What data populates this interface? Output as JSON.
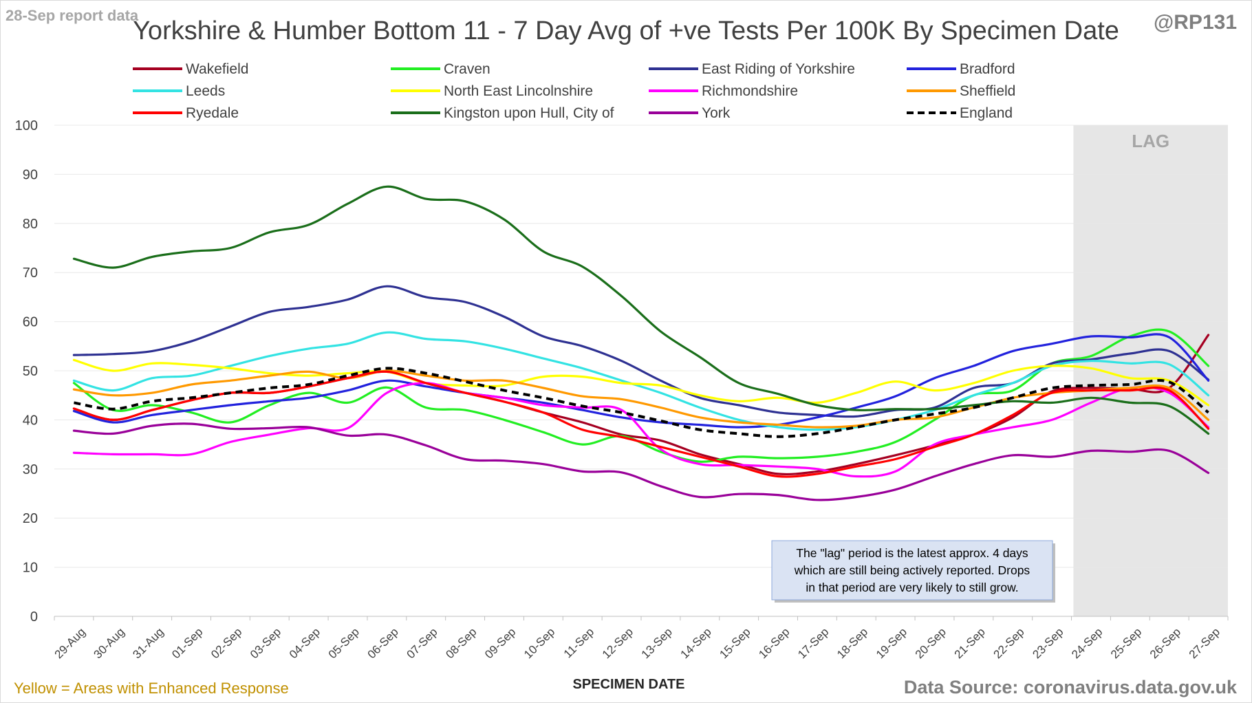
{
  "header": {
    "report_label": "28-Sep report data",
    "handle": "@RP131",
    "title": "Yorkshire & Humber Bottom 11 - 7 Day Avg of +ve Tests Per 100K By Specimen Date"
  },
  "footer": {
    "enhanced_note": "Yellow = Areas with Enhanced Response",
    "source": "Data Source: coronavirus.data.gov.uk"
  },
  "annotation": {
    "lag_label": "LAG",
    "lag_note": [
      "The \"lag\" period is the latest approx. 4 days",
      "which are still being actively reported. Drops",
      "in that period are very likely to still grow."
    ]
  },
  "colors": {
    "axis": "#d9d9d9",
    "lag_shade": "#e6e6e6",
    "note_box": "#dae3f3"
  },
  "chart_data": {
    "type": "line",
    "title": "Yorkshire & Humber Bottom 11 - 7 Day Avg of +ve Tests Per 100K By Specimen Date",
    "xlabel": "SPECIMEN DATE",
    "ylabel": "",
    "ylim": [
      0,
      100
    ],
    "yticks": [
      0,
      10,
      20,
      30,
      40,
      50,
      60,
      70,
      80,
      90,
      100
    ],
    "grid": true,
    "legend_position": "top",
    "lag_period": [
      "24-Sep",
      "27-Sep"
    ],
    "x": [
      "29-Aug",
      "30-Aug",
      "31-Aug",
      "01-Sep",
      "02-Sep",
      "03-Sep",
      "04-Sep",
      "05-Sep",
      "06-Sep",
      "07-Sep",
      "08-Sep",
      "09-Sep",
      "10-Sep",
      "11-Sep",
      "12-Sep",
      "13-Sep",
      "14-Sep",
      "15-Sep",
      "16-Sep",
      "17-Sep",
      "18-Sep",
      "19-Sep",
      "20-Sep",
      "21-Sep",
      "22-Sep",
      "23-Sep",
      "24-Sep",
      "25-Sep",
      "26-Sep",
      "27-Sep"
    ],
    "series": [
      {
        "name": "Wakefield",
        "color": "#a50021",
        "dashed": false,
        "values": [
          42.3,
          40.0,
          42.0,
          44.0,
          45.5,
          45.5,
          46.8,
          48.5,
          49.8,
          47.5,
          45.5,
          43.7,
          41.5,
          39.5,
          37.0,
          35.8,
          33.0,
          31.0,
          29.0,
          29.5,
          31.0,
          32.8,
          34.8,
          37.0,
          40.5,
          45.8,
          46.5,
          46.3,
          46.5,
          57.3
        ]
      },
      {
        "name": "Craven",
        "color": "#22ee22",
        "dashed": false,
        "values": [
          47.5,
          42.0,
          43.0,
          41.5,
          39.5,
          43.0,
          45.5,
          43.5,
          46.6,
          42.5,
          42.0,
          40.0,
          37.5,
          35.0,
          36.7,
          33.5,
          31.5,
          32.5,
          32.2,
          32.5,
          33.5,
          35.5,
          40.0,
          45.0,
          46.0,
          51.5,
          53.0,
          57.0,
          58.0,
          51.0
        ]
      },
      {
        "name": "East Riding of Yorkshire",
        "color": "#2e3192",
        "dashed": false,
        "values": [
          53.2,
          53.4,
          54.0,
          56.0,
          59.0,
          62.0,
          63.0,
          64.5,
          67.2,
          65.0,
          64.0,
          61.0,
          57.0,
          55.0,
          52.0,
          48.0,
          44.5,
          43.0,
          41.5,
          41.0,
          40.7,
          42.0,
          42.5,
          46.5,
          47.5,
          51.5,
          52.3,
          53.5,
          54.0,
          48.2
        ]
      },
      {
        "name": "Bradford",
        "color": "#2222dd",
        "dashed": false,
        "values": [
          41.8,
          39.5,
          41.0,
          42.0,
          43.0,
          43.8,
          44.5,
          46.0,
          48.0,
          46.8,
          45.5,
          44.5,
          43.5,
          42.0,
          40.5,
          39.5,
          39.0,
          38.5,
          39.0,
          40.5,
          42.5,
          44.8,
          48.5,
          51.0,
          54.0,
          55.5,
          57.0,
          56.8,
          56.8,
          48.0
        ]
      },
      {
        "name": "Leeds",
        "color": "#33e3e3",
        "dashed": false,
        "values": [
          48.0,
          46.0,
          48.5,
          49.0,
          51.0,
          53.0,
          54.5,
          55.5,
          57.8,
          56.5,
          56.0,
          54.5,
          52.5,
          50.5,
          48.0,
          45.5,
          42.5,
          40.0,
          38.5,
          38.0,
          38.5,
          40.0,
          42.0,
          45.0,
          47.5,
          51.0,
          52.0,
          51.5,
          51.3,
          45.0
        ]
      },
      {
        "name": "North East Lincolnshire",
        "color": "#ffff00",
        "dashed": false,
        "values": [
          52.2,
          50.0,
          51.5,
          51.2,
          50.5,
          49.5,
          49.0,
          49.5,
          49.8,
          47.5,
          47.0,
          47.0,
          48.8,
          48.8,
          47.5,
          47.0,
          45.0,
          43.8,
          44.5,
          43.5,
          45.5,
          47.8,
          46.0,
          47.5,
          50.0,
          51.0,
          50.5,
          48.5,
          48.0,
          43.0
        ]
      },
      {
        "name": "Richmondshire",
        "color": "#ff00ff",
        "dashed": false,
        "values": [
          33.3,
          33.0,
          33.0,
          33.0,
          35.5,
          37.0,
          38.3,
          38.3,
          45.5,
          47.5,
          45.5,
          44.5,
          43.0,
          42.5,
          42.0,
          34.0,
          31.0,
          30.8,
          30.5,
          30.0,
          28.5,
          29.5,
          35.0,
          37.0,
          38.5,
          40.0,
          43.5,
          46.5,
          45.5,
          38.5
        ]
      },
      {
        "name": "Sheffield",
        "color": "#ff9900",
        "dashed": false,
        "values": [
          46.2,
          45.0,
          45.5,
          47.2,
          48.0,
          49.0,
          49.8,
          48.5,
          50.0,
          49.0,
          48.0,
          48.0,
          46.5,
          44.8,
          44.2,
          42.5,
          40.5,
          39.5,
          39.0,
          38.5,
          38.8,
          40.0,
          40.5,
          42.5,
          44.5,
          45.5,
          46.0,
          46.5,
          46.5,
          40.0
        ]
      },
      {
        "name": "Ryedale",
        "color": "#ff0000",
        "dashed": false,
        "values": [
          42.3,
          40.0,
          42.0,
          44.0,
          45.5,
          45.5,
          46.8,
          48.5,
          49.8,
          47.5,
          45.5,
          43.7,
          41.5,
          38.0,
          36.5,
          34.5,
          32.5,
          30.5,
          28.5,
          29.0,
          30.5,
          32.0,
          34.5,
          37.0,
          41.0,
          45.5,
          46.0,
          46.0,
          46.0,
          38.2
        ]
      },
      {
        "name": "Kingston upon Hull, City of",
        "color": "#1a6e1a",
        "dashed": false,
        "values": [
          72.8,
          71.0,
          73.2,
          74.3,
          75.0,
          78.2,
          79.7,
          84.0,
          87.5,
          85.0,
          84.5,
          80.8,
          74.3,
          71.2,
          65.2,
          58.0,
          52.8,
          47.5,
          45.3,
          43.0,
          42.0,
          42.2,
          42.2,
          43.0,
          43.8,
          43.5,
          44.5,
          43.5,
          42.8,
          37.2
        ]
      },
      {
        "name": "York",
        "color": "#990099",
        "dashed": false,
        "values": [
          37.8,
          37.2,
          38.8,
          39.2,
          38.2,
          38.3,
          38.5,
          36.8,
          37.0,
          34.8,
          32.0,
          31.7,
          31.0,
          29.5,
          29.3,
          26.5,
          24.3,
          24.9,
          24.7,
          23.7,
          24.3,
          25.8,
          28.5,
          31.0,
          32.8,
          32.5,
          33.7,
          33.5,
          33.7,
          29.2
        ]
      },
      {
        "name": "England",
        "color": "#000000",
        "dashed": true,
        "values": [
          43.5,
          42.2,
          43.8,
          44.5,
          45.5,
          46.5,
          47.2,
          49.0,
          50.5,
          49.5,
          47.8,
          46.0,
          44.5,
          42.8,
          41.5,
          39.8,
          38.0,
          37.2,
          36.6,
          37.2,
          38.5,
          40.0,
          41.2,
          42.5,
          44.5,
          46.5,
          47.0,
          47.2,
          47.7,
          41.5
        ]
      }
    ]
  }
}
